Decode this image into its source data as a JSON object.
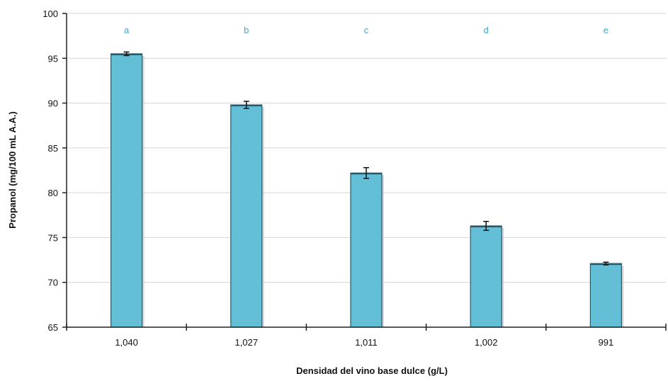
{
  "chart_data": {
    "type": "bar",
    "title": "",
    "xlabel": "Densidad del vino base dulce (g/L)",
    "ylabel": "Propanol (mg/100 mL A.A.)",
    "categories": [
      "1,040",
      "1,027",
      "1,011",
      "1,002",
      "991"
    ],
    "values": [
      95.5,
      89.8,
      82.2,
      76.3,
      72.1
    ],
    "errors": [
      0.2,
      0.4,
      0.6,
      0.5,
      0.15
    ],
    "letters": [
      "a",
      "b",
      "c",
      "d",
      "e"
    ],
    "ylim": [
      65,
      100
    ],
    "yticks": [
      "65",
      "70",
      "75",
      "80",
      "85",
      "90",
      "95",
      "100"
    ],
    "grid": true,
    "legend": "none",
    "colors": {
      "bar_fill": "#63bfd6",
      "bar_edge": "#2a5866",
      "letter": "#4aa3c4",
      "grid": "#d4d4d4",
      "axis": "#222222"
    }
  }
}
